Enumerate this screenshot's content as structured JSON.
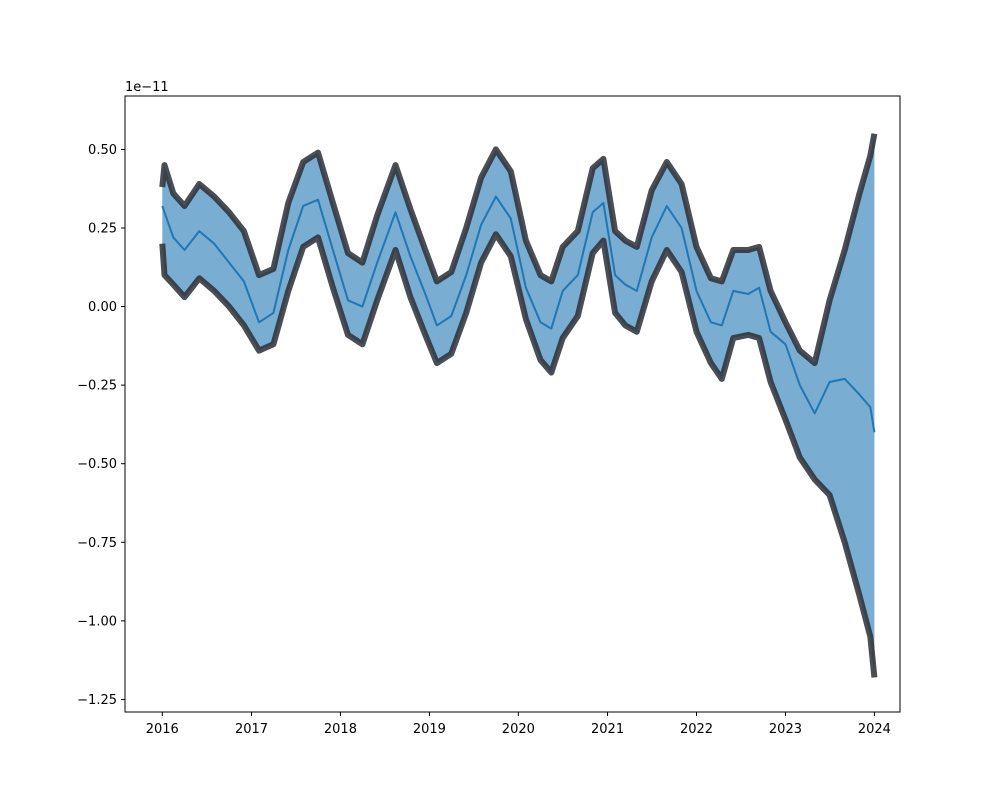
{
  "chart_data": {
    "type": "area",
    "title": "",
    "xlabel": "",
    "ylabel": "",
    "y_offset_label": "1e−11",
    "xlim": [
      "2015-08-01",
      "2024-04-15"
    ],
    "ylim": [
      -1.29,
      0.67
    ],
    "x_ticks": [
      {
        "date": "2016-01-01",
        "label": "2016"
      },
      {
        "date": "2017-01-01",
        "label": "2017"
      },
      {
        "date": "2018-01-01",
        "label": "2018"
      },
      {
        "date": "2019-01-01",
        "label": "2019"
      },
      {
        "date": "2020-01-01",
        "label": "2020"
      },
      {
        "date": "2021-01-01",
        "label": "2021"
      },
      {
        "date": "2022-01-01",
        "label": "2022"
      },
      {
        "date": "2023-01-01",
        "label": "2023"
      },
      {
        "date": "2024-01-01",
        "label": "2024"
      }
    ],
    "y_ticks": [
      {
        "value": 0.5,
        "label": "0.50"
      },
      {
        "value": 0.25,
        "label": "0.25"
      },
      {
        "value": 0.0,
        "label": "0.00"
      },
      {
        "value": -0.25,
        "label": "−0.25"
      },
      {
        "value": -0.5,
        "label": "−0.50"
      },
      {
        "value": -0.75,
        "label": "−0.75"
      },
      {
        "value": -1.0,
        "label": "−1.00"
      },
      {
        "value": -1.25,
        "label": "−1.25"
      }
    ],
    "grid": false,
    "legend": "none",
    "colors": {
      "mean_line": "#1f77b4",
      "fill": "#1f77b4",
      "bound_lines": "#2b2f36"
    },
    "series": [
      {
        "role": "mean",
        "x": [
          "2016-01-01",
          "2016-02-15",
          "2016-04-01",
          "2016-06-01",
          "2016-08-01",
          "2016-10-01",
          "2016-12-01",
          "2017-02-01",
          "2017-04-01",
          "2017-06-01",
          "2017-08-01",
          "2017-10-01",
          "2017-12-01",
          "2018-02-01",
          "2018-04-01",
          "2018-06-01",
          "2018-08-15",
          "2018-10-15",
          "2018-12-15",
          "2019-02-01",
          "2019-04-01",
          "2019-06-01",
          "2019-08-01",
          "2019-10-01",
          "2019-12-01",
          "2020-02-01",
          "2020-04-01",
          "2020-05-15",
          "2020-07-01",
          "2020-09-01",
          "2020-11-01",
          "2020-12-15",
          "2021-02-01",
          "2021-03-15",
          "2021-05-01",
          "2021-07-01",
          "2021-09-01",
          "2021-11-01",
          "2022-01-01",
          "2022-03-01",
          "2022-04-15",
          "2022-06-01",
          "2022-08-01",
          "2022-09-15",
          "2022-11-01",
          "2023-01-01",
          "2023-03-01",
          "2023-05-01",
          "2023-07-01",
          "2023-09-01",
          "2023-11-01",
          "2023-12-15",
          "2024-01-01"
        ],
        "y": [
          0.32,
          0.22,
          0.18,
          0.24,
          0.2,
          0.14,
          0.08,
          -0.05,
          -0.02,
          0.18,
          0.32,
          0.34,
          0.18,
          0.02,
          0.0,
          0.14,
          0.3,
          0.16,
          0.04,
          -0.06,
          -0.03,
          0.1,
          0.26,
          0.35,
          0.28,
          0.06,
          -0.05,
          -0.07,
          0.05,
          0.1,
          0.3,
          0.33,
          0.1,
          0.07,
          0.05,
          0.22,
          0.32,
          0.25,
          0.05,
          -0.05,
          -0.06,
          0.05,
          0.04,
          0.06,
          -0.08,
          -0.12,
          -0.25,
          -0.34,
          -0.24,
          -0.23,
          -0.28,
          -0.32,
          -0.4
        ]
      },
      {
        "role": "upper_bound",
        "x": [
          "2016-01-01",
          "2016-01-10",
          "2016-02-15",
          "2016-04-01",
          "2016-06-01",
          "2016-08-01",
          "2016-10-01",
          "2016-12-01",
          "2017-02-01",
          "2017-04-01",
          "2017-06-01",
          "2017-08-01",
          "2017-10-01",
          "2017-12-01",
          "2018-02-01",
          "2018-04-01",
          "2018-06-01",
          "2018-08-15",
          "2018-10-15",
          "2018-12-15",
          "2019-02-01",
          "2019-04-01",
          "2019-06-01",
          "2019-08-01",
          "2019-10-01",
          "2019-12-01",
          "2020-02-01",
          "2020-04-01",
          "2020-05-15",
          "2020-07-01",
          "2020-09-01",
          "2020-11-01",
          "2020-12-15",
          "2021-02-01",
          "2021-03-15",
          "2021-05-01",
          "2021-07-01",
          "2021-09-01",
          "2021-11-01",
          "2022-01-01",
          "2022-03-01",
          "2022-04-15",
          "2022-06-01",
          "2022-08-01",
          "2022-09-15",
          "2022-11-01",
          "2023-01-01",
          "2023-03-01",
          "2023-05-01",
          "2023-07-01",
          "2023-09-01",
          "2023-11-01",
          "2023-12-15",
          "2024-01-01"
        ],
        "y": [
          0.38,
          0.45,
          0.36,
          0.32,
          0.39,
          0.35,
          0.3,
          0.24,
          0.1,
          0.12,
          0.33,
          0.46,
          0.49,
          0.33,
          0.17,
          0.14,
          0.29,
          0.45,
          0.31,
          0.18,
          0.08,
          0.11,
          0.25,
          0.41,
          0.5,
          0.43,
          0.21,
          0.1,
          0.08,
          0.19,
          0.24,
          0.44,
          0.47,
          0.24,
          0.21,
          0.19,
          0.37,
          0.46,
          0.39,
          0.19,
          0.09,
          0.08,
          0.18,
          0.18,
          0.19,
          0.05,
          -0.05,
          -0.14,
          -0.18,
          0.02,
          0.18,
          0.36,
          0.48,
          0.55
        ]
      },
      {
        "role": "lower_bound",
        "x": [
          "2016-01-01",
          "2016-01-10",
          "2016-02-15",
          "2016-04-01",
          "2016-06-01",
          "2016-08-01",
          "2016-10-01",
          "2016-12-01",
          "2017-02-01",
          "2017-04-01",
          "2017-06-01",
          "2017-08-01",
          "2017-10-01",
          "2017-12-01",
          "2018-02-01",
          "2018-04-01",
          "2018-06-01",
          "2018-08-15",
          "2018-10-15",
          "2018-12-15",
          "2019-02-01",
          "2019-04-01",
          "2019-06-01",
          "2019-08-01",
          "2019-10-01",
          "2019-12-01",
          "2020-02-01",
          "2020-04-01",
          "2020-05-15",
          "2020-07-01",
          "2020-09-01",
          "2020-11-01",
          "2020-12-15",
          "2021-02-01",
          "2021-03-15",
          "2021-05-01",
          "2021-07-01",
          "2021-09-01",
          "2021-11-01",
          "2022-01-01",
          "2022-03-01",
          "2022-04-15",
          "2022-06-01",
          "2022-08-01",
          "2022-09-15",
          "2022-11-01",
          "2023-01-01",
          "2023-03-01",
          "2023-05-01",
          "2023-07-01",
          "2023-09-01",
          "2023-11-01",
          "2023-12-15",
          "2024-01-01"
        ],
        "y": [
          0.2,
          0.1,
          0.07,
          0.03,
          0.09,
          0.05,
          0.0,
          -0.06,
          -0.14,
          -0.12,
          0.05,
          0.19,
          0.22,
          0.06,
          -0.09,
          -0.12,
          0.02,
          0.18,
          0.03,
          -0.09,
          -0.18,
          -0.15,
          -0.02,
          0.14,
          0.23,
          0.16,
          -0.04,
          -0.17,
          -0.21,
          -0.1,
          -0.03,
          0.17,
          0.21,
          -0.02,
          -0.06,
          -0.08,
          0.08,
          0.18,
          0.11,
          -0.08,
          -0.18,
          -0.23,
          -0.1,
          -0.09,
          -0.1,
          -0.24,
          -0.36,
          -0.48,
          -0.55,
          -0.6,
          -0.75,
          -0.92,
          -1.05,
          -1.18
        ]
      }
    ]
  }
}
